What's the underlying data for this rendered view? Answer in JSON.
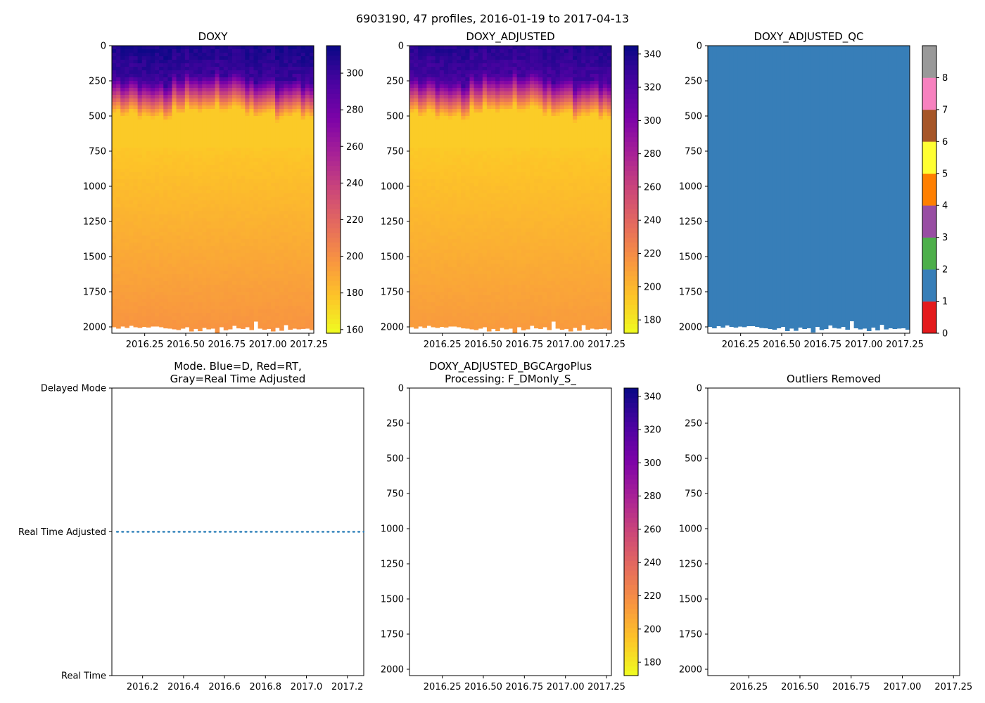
{
  "figure": {
    "suptitle": "6903190, 47 profiles, 2016-01-19 to 2017-04-13"
  },
  "colors": {
    "qc_palette": [
      "#e41a1c",
      "#377eb8",
      "#4daf4a",
      "#984ea3",
      "#ff7f00",
      "#ffff33",
      "#a65628",
      "#f781bf",
      "#999999"
    ],
    "qc_fill": "#377eb8",
    "mode_line": "#1f77b4"
  },
  "chart_data": [
    {
      "id": "doxy",
      "type": "heatmap",
      "title": "DOXY",
      "colormap": "plasma_r",
      "y_ticks": [
        "0",
        "250",
        "500",
        "750",
        "1000",
        "1250",
        "1500",
        "1750",
        "2000"
      ],
      "x_ticks": [
        "2016.25",
        "2016.50",
        "2016.75",
        "2017.00",
        "2017.25"
      ],
      "colorbar_ticks": [
        "160",
        "180",
        "200",
        "220",
        "240",
        "260",
        "280",
        "300"
      ],
      "colorbar_range": [
        158,
        315
      ],
      "x_range": [
        2016.05,
        2017.28
      ],
      "y_range": [
        2045,
        0
      ],
      "profiles": 47,
      "surface_value": 300,
      "deep_value": 185
    },
    {
      "id": "doxy_adj",
      "type": "heatmap",
      "title": "DOXY_ADJUSTED",
      "colormap": "plasma_r",
      "y_ticks": [
        "0",
        "250",
        "500",
        "750",
        "1000",
        "1250",
        "1500",
        "1750",
        "2000"
      ],
      "x_ticks": [
        "2016.25",
        "2016.50",
        "2016.75",
        "2017.00",
        "2017.25"
      ],
      "colorbar_ticks": [
        "180",
        "200",
        "220",
        "240",
        "260",
        "280",
        "300",
        "320",
        "340"
      ],
      "colorbar_range": [
        172,
        345
      ],
      "x_range": [
        2016.05,
        2017.28
      ],
      "y_range": [
        2045,
        0
      ],
      "profiles": 47,
      "surface_value": 325,
      "deep_value": 200
    },
    {
      "id": "qc",
      "type": "heatmap",
      "title": "DOXY_ADJUSTED_QC",
      "y_ticks": [
        "0",
        "250",
        "500",
        "750",
        "1000",
        "1250",
        "1500",
        "1750",
        "2000"
      ],
      "x_ticks": [
        "2016.25",
        "2016.50",
        "2016.75",
        "2017.00",
        "2017.25"
      ],
      "colorbar_ticks": [
        "0",
        "1",
        "2",
        "3",
        "4",
        "5",
        "6",
        "7",
        "8"
      ],
      "colorbar_range": [
        0,
        9
      ],
      "x_range": [
        2016.05,
        2017.28
      ],
      "y_range": [
        2045,
        0
      ],
      "qc_value": 1
    },
    {
      "id": "mode",
      "type": "line",
      "title": "Mode. Blue=D, Red=RT,\nGray=Real Time Adjusted",
      "y_tick_labels": [
        "Delayed Mode",
        "Real Time Adjusted",
        "Real Time"
      ],
      "y_tick_values": [
        1,
        0.5,
        0
      ],
      "x_ticks": [
        "2016.2",
        "2016.4",
        "2016.6",
        "2016.8",
        "2017.0",
        "2017.2"
      ],
      "x_range": [
        2016.05,
        2017.28
      ],
      "series": [
        {
          "name": "mode",
          "value": 0.5,
          "style": "dotted"
        }
      ]
    },
    {
      "id": "bgc",
      "type": "heatmap",
      "title": "DOXY_ADJUSTED_BGCArgoPlus\nProcessing: F_DMonly_S_",
      "colormap": "plasma_r",
      "y_ticks": [
        "0",
        "250",
        "500",
        "750",
        "1000",
        "1250",
        "1500",
        "1750",
        "2000"
      ],
      "x_ticks": [
        "2016.25",
        "2016.50",
        "2016.75",
        "2017.00",
        "2017.25"
      ],
      "colorbar_ticks": [
        "180",
        "200",
        "220",
        "240",
        "260",
        "280",
        "300",
        "320",
        "340"
      ],
      "colorbar_range": [
        172,
        345
      ],
      "x_range": [
        2016.05,
        2017.28
      ],
      "y_range": [
        2045,
        0
      ],
      "empty": true
    },
    {
      "id": "outliers",
      "type": "scatter",
      "title": "Outliers Removed",
      "y_ticks": [
        "0",
        "250",
        "500",
        "750",
        "1000",
        "1250",
        "1500",
        "1750",
        "2000"
      ],
      "x_ticks": [
        "2016.25",
        "2016.50",
        "2016.75",
        "2017.00",
        "2017.25"
      ],
      "x_range": [
        2016.05,
        2017.28
      ],
      "y_range": [
        2045,
        0
      ],
      "empty": true
    }
  ]
}
